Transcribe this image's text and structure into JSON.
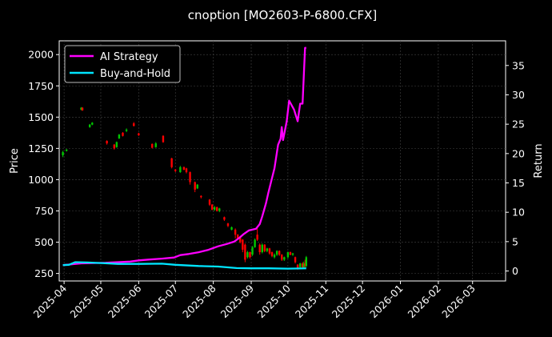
{
  "chart_data": {
    "type": "line",
    "title": "cnoption [MO2603-P-6800.CFX]",
    "ylabel": "Price",
    "ylabel_right": "Return",
    "x_ticks": [
      "2025-04",
      "2025-05",
      "2025-06",
      "2025-07",
      "2025-08",
      "2025-09",
      "2025-10",
      "2025-11",
      "2025-12",
      "2026-01",
      "2026-02",
      "2026-03"
    ],
    "x_range": [
      "2025-03-28",
      "2026-03-28"
    ],
    "y_left_range": [
      190,
      2110
    ],
    "y_left_ticks": [
      250,
      500,
      750,
      1000,
      1250,
      1500,
      1750,
      2000
    ],
    "y_right_range": [
      -1.7,
      39.2
    ],
    "y_right_ticks": [
      0,
      5,
      10,
      15,
      20,
      25,
      30,
      35
    ],
    "grid": true,
    "legend_position": "top-left",
    "colors": {
      "ai": "#ff00ff",
      "bh": "#00e5ff",
      "up": "#00c800",
      "down": "#ff0000",
      "background": "#000000",
      "grid": "#444444"
    },
    "series": [
      {
        "name": "AI Strategy",
        "axis": "right",
        "points": [
          [
            "2025-03-31",
            1.0
          ],
          [
            "2025-04-05",
            1.1
          ],
          [
            "2025-04-10",
            1.2
          ],
          [
            "2025-04-15",
            1.3
          ],
          [
            "2025-04-25",
            1.35
          ],
          [
            "2025-05-05",
            1.4
          ],
          [
            "2025-05-15",
            1.5
          ],
          [
            "2025-05-25",
            1.6
          ],
          [
            "2025-06-01",
            1.8
          ],
          [
            "2025-06-10",
            1.95
          ],
          [
            "2025-06-20",
            2.1
          ],
          [
            "2025-06-30",
            2.3
          ],
          [
            "2025-07-05",
            2.7
          ],
          [
            "2025-07-12",
            2.9
          ],
          [
            "2025-07-20",
            3.2
          ],
          [
            "2025-07-28",
            3.6
          ],
          [
            "2025-08-05",
            4.2
          ],
          [
            "2025-08-12",
            4.6
          ],
          [
            "2025-08-18",
            5.0
          ],
          [
            "2025-08-22",
            5.6
          ],
          [
            "2025-08-26",
            6.3
          ],
          [
            "2025-08-30",
            6.9
          ],
          [
            "2025-09-05",
            7.2
          ],
          [
            "2025-09-08",
            8.0
          ],
          [
            "2025-09-10",
            9.3
          ],
          [
            "2025-09-13",
            11.5
          ],
          [
            "2025-09-15",
            13.3
          ],
          [
            "2025-09-17",
            15.0
          ],
          [
            "2025-09-20",
            17.5
          ],
          [
            "2025-09-23",
            21.5
          ],
          [
            "2025-09-25",
            22.5
          ],
          [
            "2025-09-26",
            24.5
          ],
          [
            "2025-09-27",
            22.3
          ],
          [
            "2025-09-30",
            25.5
          ],
          [
            "2025-10-02",
            29.0
          ],
          [
            "2025-10-06",
            27.5
          ],
          [
            "2025-10-09",
            25.5
          ],
          [
            "2025-10-11",
            28.5
          ],
          [
            "2025-10-13",
            28.5
          ],
          [
            "2025-10-15",
            38.0
          ],
          [
            "2025-10-16",
            38.0
          ]
        ]
      },
      {
        "name": "Buy-and-Hold",
        "axis": "right",
        "points": [
          [
            "2025-03-31",
            1.0
          ],
          [
            "2025-04-05",
            1.05
          ],
          [
            "2025-04-10",
            1.5
          ],
          [
            "2025-04-20",
            1.45
          ],
          [
            "2025-05-01",
            1.35
          ],
          [
            "2025-05-15",
            1.2
          ],
          [
            "2025-06-01",
            1.2
          ],
          [
            "2025-06-20",
            1.25
          ],
          [
            "2025-07-01",
            1.05
          ],
          [
            "2025-07-20",
            0.85
          ],
          [
            "2025-08-05",
            0.75
          ],
          [
            "2025-08-20",
            0.5
          ],
          [
            "2025-09-01",
            0.45
          ],
          [
            "2025-09-15",
            0.45
          ],
          [
            "2025-10-01",
            0.4
          ],
          [
            "2025-10-16",
            0.45
          ]
        ]
      }
    ],
    "candles": [
      [
        "2025-03-31",
        1195,
        1220,
        1180,
        1230
      ],
      [
        "2025-04-03",
        1230,
        1240,
        1225,
        1245
      ],
      [
        "2025-04-15",
        1560,
        1575,
        1555,
        1580
      ],
      [
        "2025-04-16",
        1575,
        1555,
        1550,
        1580
      ],
      [
        "2025-04-22",
        1420,
        1440,
        1415,
        1445
      ],
      [
        "2025-04-24",
        1440,
        1455,
        1435,
        1460
      ],
      [
        "2025-05-06",
        1310,
        1290,
        1280,
        1315
      ],
      [
        "2025-05-12",
        1280,
        1250,
        1240,
        1285
      ],
      [
        "2025-05-14",
        1260,
        1300,
        1255,
        1305
      ],
      [
        "2025-05-16",
        1330,
        1360,
        1325,
        1365
      ],
      [
        "2025-05-19",
        1375,
        1350,
        1345,
        1380
      ],
      [
        "2025-05-22",
        1390,
        1400,
        1380,
        1410
      ],
      [
        "2025-05-28",
        1450,
        1430,
        1425,
        1460
      ],
      [
        "2025-06-01",
        1370,
        1355,
        1350,
        1375
      ],
      [
        "2025-06-12",
        1285,
        1255,
        1250,
        1290
      ],
      [
        "2025-06-15",
        1260,
        1290,
        1255,
        1300
      ],
      [
        "2025-06-21",
        1350,
        1300,
        1295,
        1355
      ],
      [
        "2025-06-28",
        1170,
        1100,
        1090,
        1175
      ],
      [
        "2025-07-01",
        1080,
        1070,
        1060,
        1085
      ],
      [
        "2025-07-05",
        1060,
        1100,
        1055,
        1110
      ],
      [
        "2025-07-08",
        1100,
        1080,
        1075,
        1105
      ],
      [
        "2025-07-10",
        1090,
        1060,
        1050,
        1095
      ],
      [
        "2025-07-13",
        1060,
        980,
        960,
        1065
      ],
      [
        "2025-07-17",
        980,
        920,
        900,
        985
      ],
      [
        "2025-07-19",
        930,
        960,
        925,
        965
      ],
      [
        "2025-07-22",
        870,
        860,
        850,
        875
      ],
      [
        "2025-07-29",
        840,
        800,
        790,
        845
      ],
      [
        "2025-07-31",
        800,
        760,
        755,
        805
      ],
      [
        "2025-08-02",
        760,
        780,
        750,
        790
      ],
      [
        "2025-08-04",
        780,
        750,
        745,
        785
      ],
      [
        "2025-08-06",
        750,
        770,
        740,
        775
      ],
      [
        "2025-08-10",
        700,
        680,
        670,
        705
      ],
      [
        "2025-08-13",
        650,
        630,
        620,
        655
      ],
      [
        "2025-08-16",
        600,
        620,
        595,
        625
      ],
      [
        "2025-08-19",
        600,
        560,
        530,
        610
      ],
      [
        "2025-08-21",
        560,
        530,
        520,
        565
      ],
      [
        "2025-08-23",
        540,
        500,
        490,
        545
      ],
      [
        "2025-08-25",
        520,
        440,
        420,
        525
      ],
      [
        "2025-08-27",
        480,
        360,
        340,
        490
      ],
      [
        "2025-08-29",
        380,
        420,
        370,
        430
      ],
      [
        "2025-08-31",
        420,
        380,
        370,
        425
      ],
      [
        "2025-09-02",
        400,
        460,
        390,
        470
      ],
      [
        "2025-09-04",
        460,
        520,
        455,
        530
      ],
      [
        "2025-09-06",
        560,
        520,
        510,
        610
      ],
      [
        "2025-09-08",
        480,
        420,
        400,
        490
      ],
      [
        "2025-09-10",
        420,
        480,
        410,
        490
      ],
      [
        "2025-09-12",
        480,
        430,
        420,
        485
      ],
      [
        "2025-09-14",
        430,
        450,
        420,
        455
      ],
      [
        "2025-09-16",
        450,
        410,
        400,
        455
      ],
      [
        "2025-09-18",
        420,
        390,
        380,
        425
      ],
      [
        "2025-09-20",
        380,
        400,
        370,
        410
      ],
      [
        "2025-09-22",
        400,
        430,
        390,
        435
      ],
      [
        "2025-09-24",
        430,
        400,
        390,
        435
      ],
      [
        "2025-09-26",
        400,
        360,
        350,
        405
      ],
      [
        "2025-09-28",
        360,
        380,
        350,
        385
      ],
      [
        "2025-10-01",
        380,
        420,
        370,
        425
      ],
      [
        "2025-10-03",
        420,
        400,
        395,
        425
      ],
      [
        "2025-10-05",
        400,
        410,
        390,
        415
      ],
      [
        "2025-10-07",
        380,
        340,
        330,
        385
      ],
      [
        "2025-10-09",
        320,
        290,
        280,
        325
      ],
      [
        "2025-10-11",
        300,
        330,
        290,
        335
      ],
      [
        "2025-10-13",
        330,
        300,
        295,
        340
      ],
      [
        "2025-10-14",
        300,
        330,
        290,
        345
      ],
      [
        "2025-10-15",
        330,
        310,
        300,
        360
      ],
      [
        "2025-10-16",
        310,
        380,
        300,
        390
      ]
    ]
  }
}
